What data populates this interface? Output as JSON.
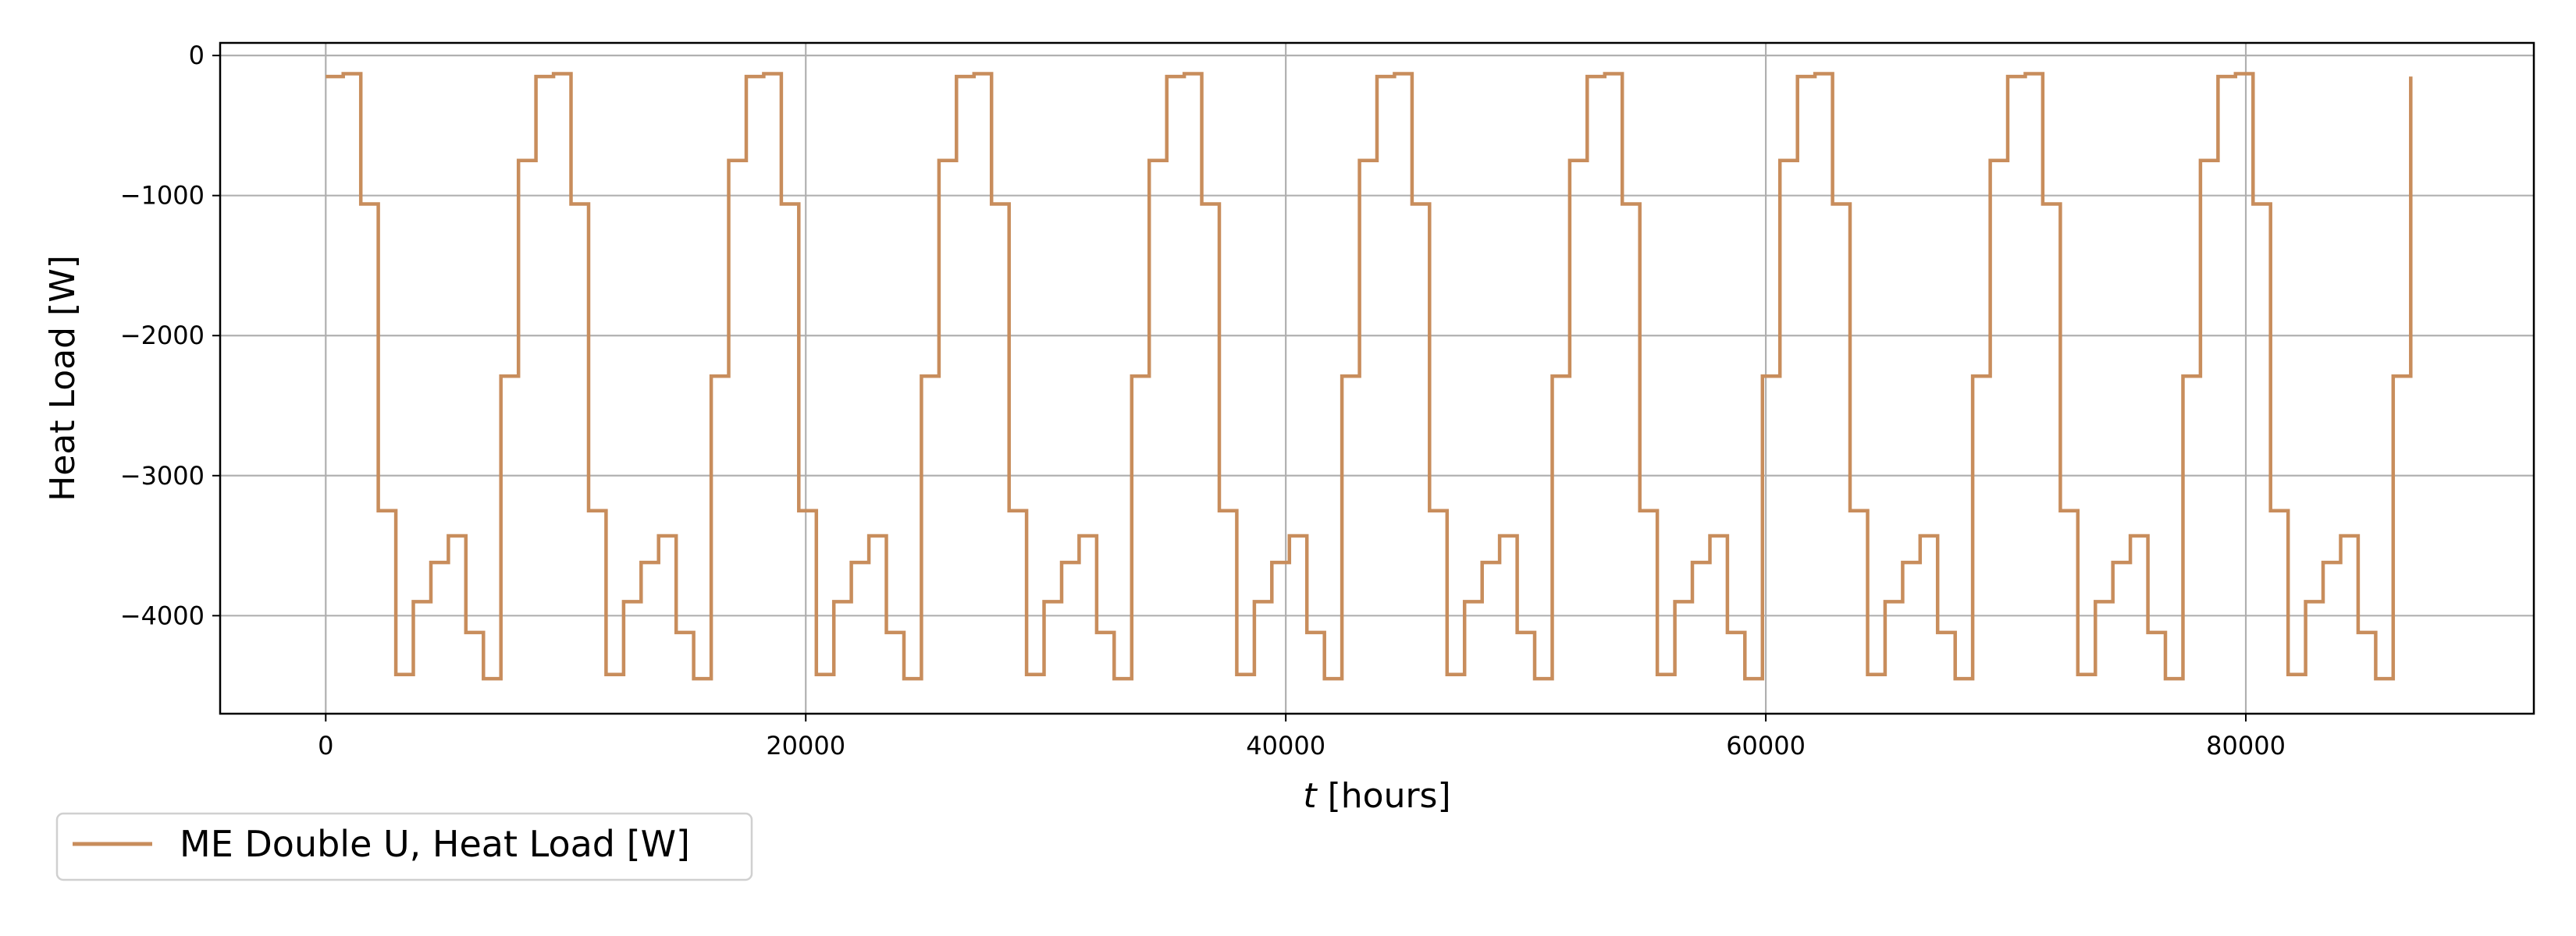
{
  "chart_data": {
    "type": "line",
    "xlabel_italic": "t",
    "xlabel_rest": " [hours]",
    "ylabel": "Heat Load [W]",
    "xlim": [
      -4400,
      92000
    ],
    "ylim": [
      -4700,
      90
    ],
    "xticks": [
      0,
      20000,
      40000,
      60000,
      80000
    ],
    "yticks": [
      0,
      -1000,
      -2000,
      -3000,
      -4000
    ],
    "xtick_labels": [
      "0",
      "20000",
      "40000",
      "60000",
      "80000"
    ],
    "ytick_labels": [
      "0",
      "−1000",
      "−2000",
      "−3000",
      "−4000"
    ],
    "grid": true,
    "legend_position": "below-left",
    "period_hours": 8760,
    "n_periods": 10,
    "series": [
      {
        "name": "ME Double U, Heat Load [W]",
        "color": "#c88d5c",
        "step_levels_per_year": [
          -150,
          -130,
          -1060,
          -3250,
          -4420,
          -3900,
          -3620,
          -3430,
          -4120,
          -4450,
          -2290,
          -750
        ]
      }
    ]
  }
}
